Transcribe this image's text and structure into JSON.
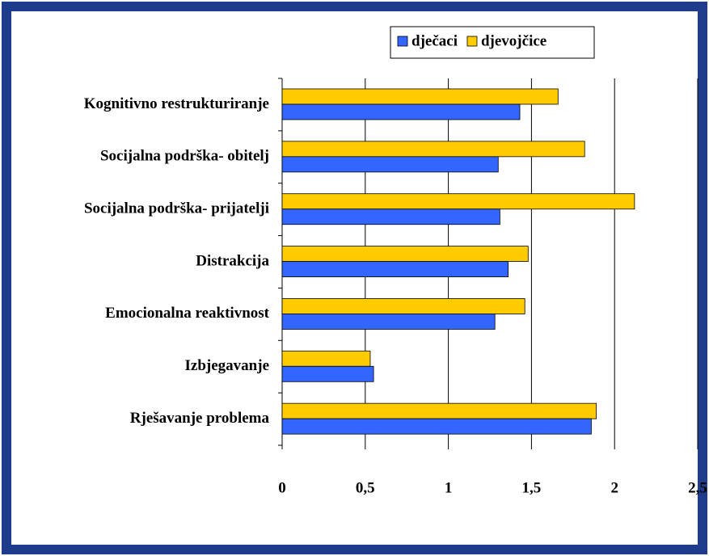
{
  "chart_data": {
    "type": "hbar",
    "categories": [
      "Kognitivno restrukturiranje",
      "Socijalna podrška- obitelj",
      "Socijalna podrška- prijatelji",
      "Distrakcija",
      "Emocionalna reaktivnost",
      "Izbjegavanje",
      "Rješavanje problema"
    ],
    "series": [
      {
        "name": "dječaci",
        "color": "#3366ff",
        "values": [
          1.43,
          1.3,
          1.31,
          1.36,
          1.28,
          0.55,
          1.86
        ]
      },
      {
        "name": "djevojčice",
        "color": "#ffcc00",
        "values": [
          1.66,
          1.82,
          2.12,
          1.48,
          1.46,
          0.53,
          1.89
        ]
      }
    ],
    "xlim": [
      0,
      2.5
    ],
    "xticks": [
      0,
      {
        "value": 0.5,
        "label": "0,5"
      },
      1,
      {
        "value": 1.5,
        "label": "1,5"
      },
      2,
      {
        "value": 2.5,
        "label": "2,5"
      }
    ],
    "grid": true,
    "legend": "top"
  }
}
